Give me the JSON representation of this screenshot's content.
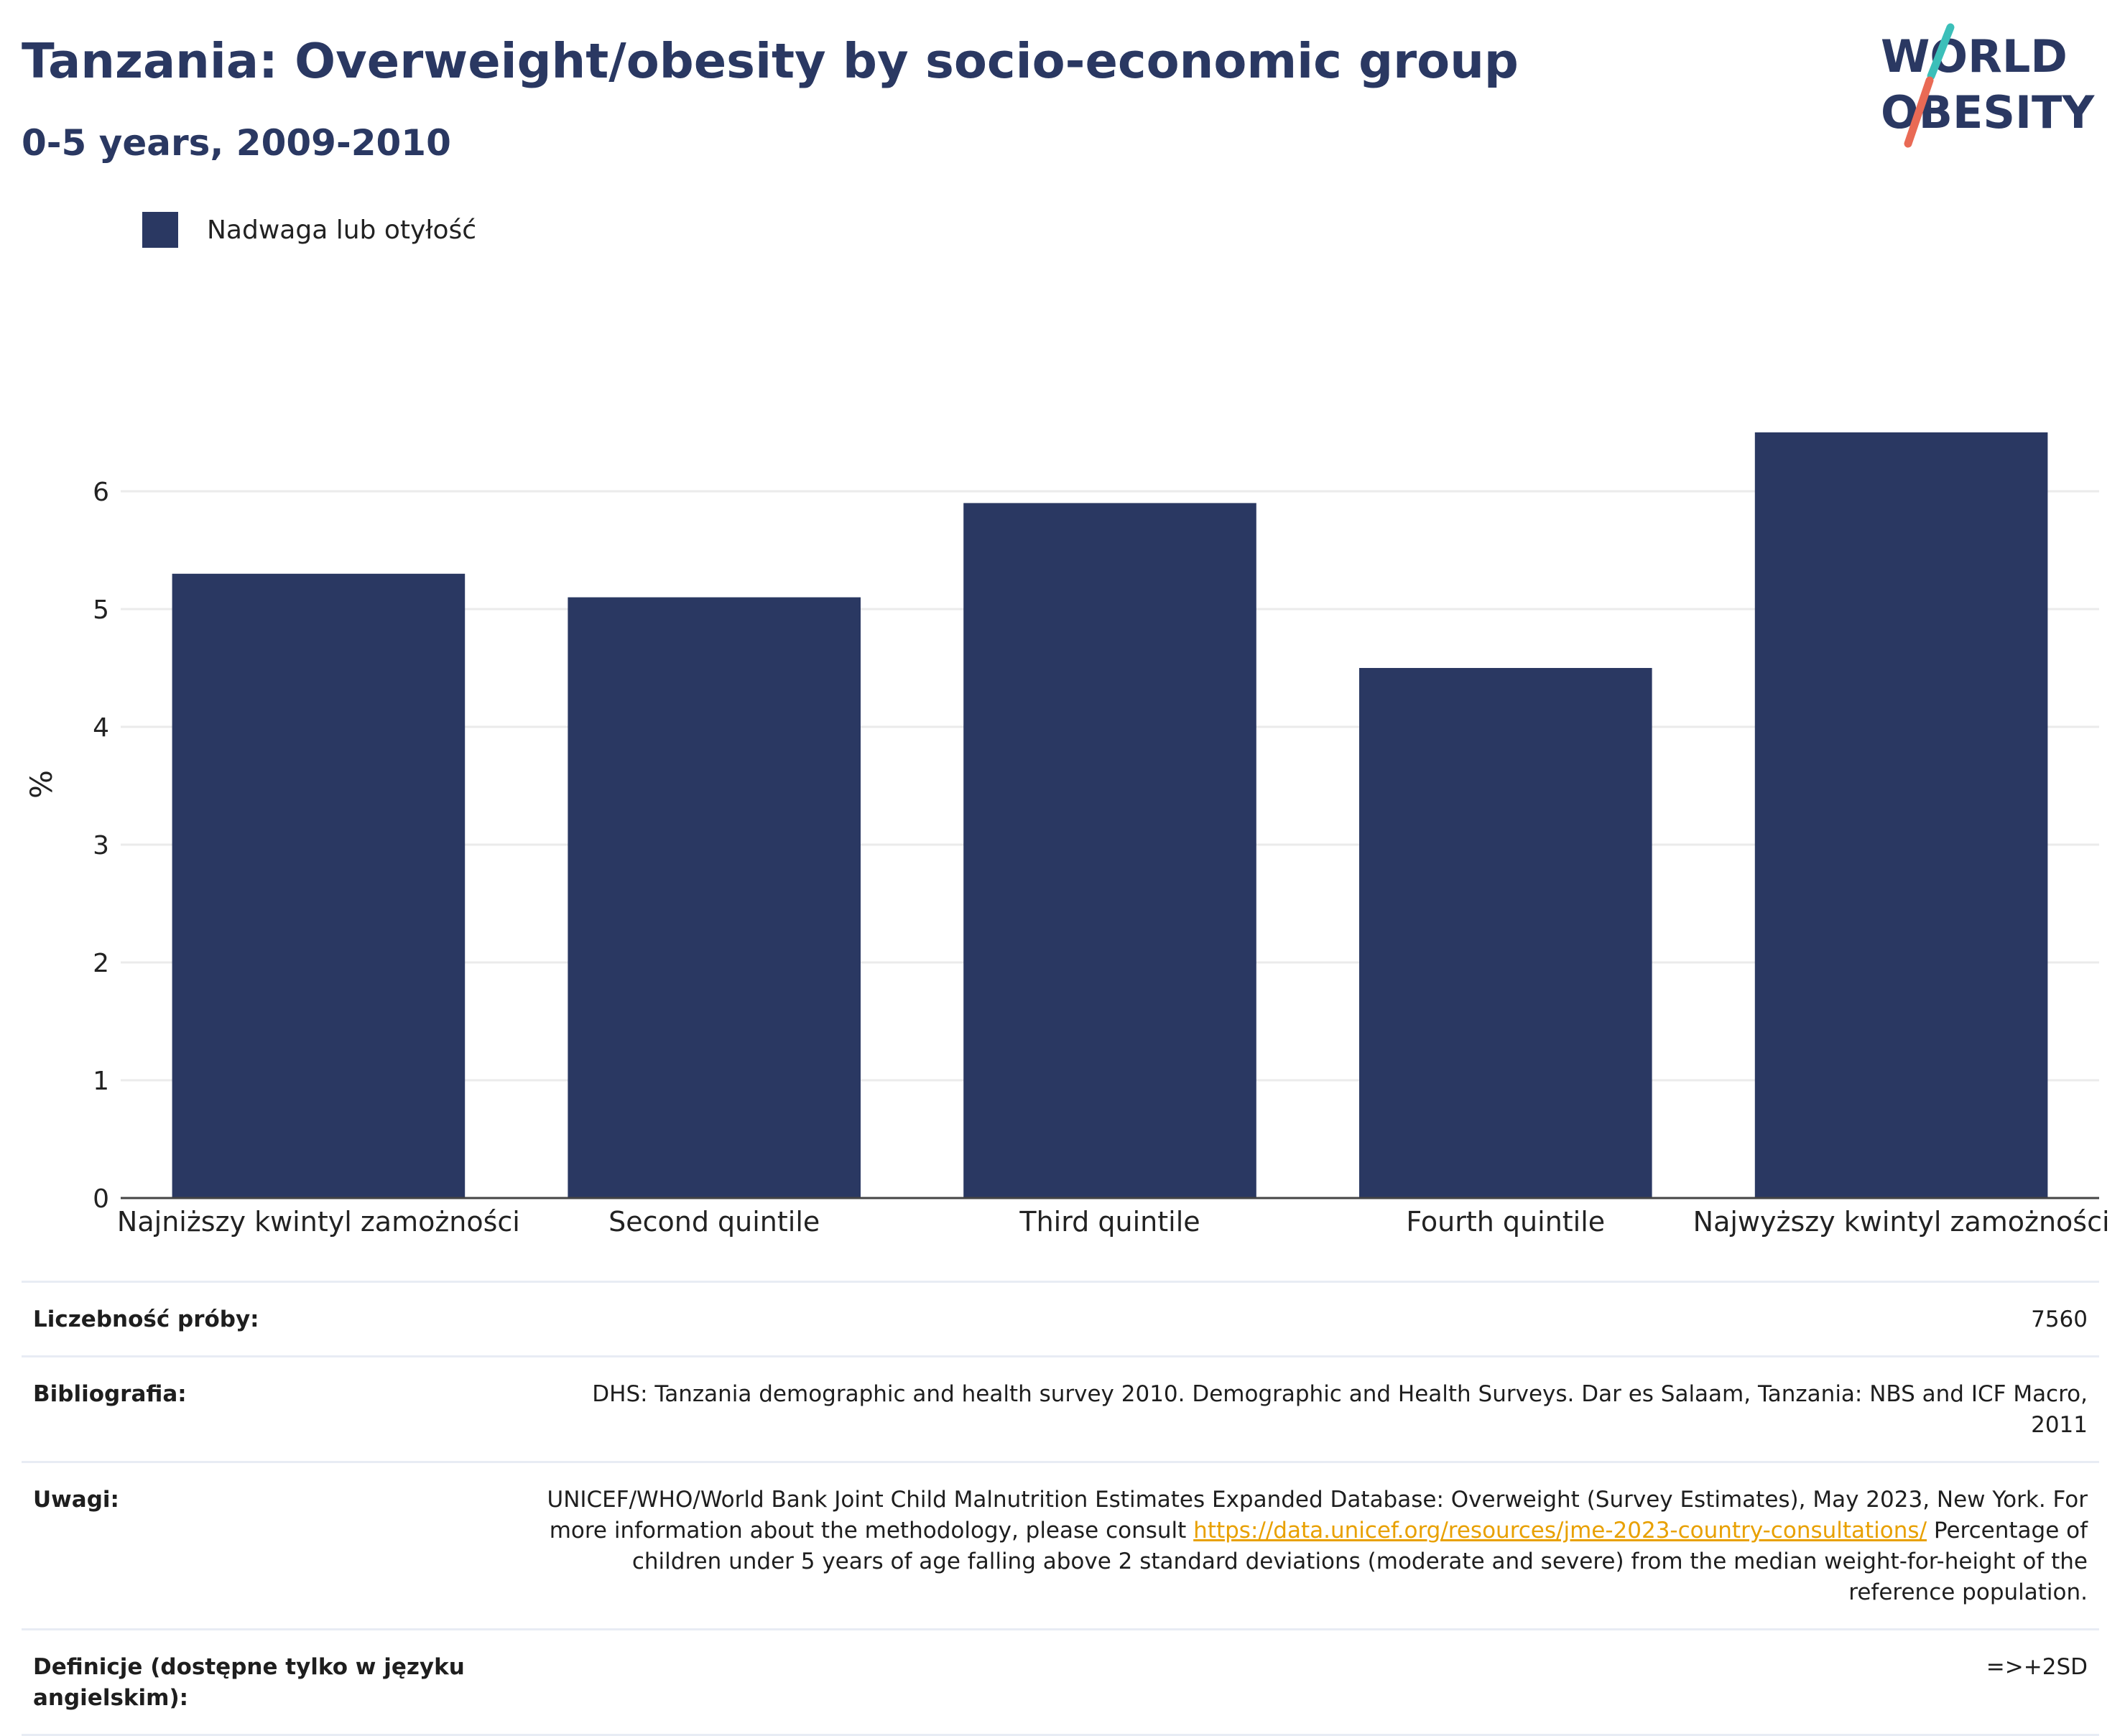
{
  "header": {
    "title": "Tanzania: Overweight/obesity by socio-economic group",
    "subtitle": "0-5 years, 2009-2010"
  },
  "logo": {
    "line1": "WORLD",
    "line2": "OBESITY",
    "accent_colors": [
      "#3bbfb9",
      "#e96a55"
    ]
  },
  "legend": {
    "label": "Nadwaga lub otyłość",
    "color": "#2a3862"
  },
  "chart_data": {
    "type": "bar",
    "categories": [
      "Najniższy kwintyl zamożności",
      "Second quintile",
      "Third quintile",
      "Fourth quintile",
      "Najwyższy kwintyl zamożności"
    ],
    "series": [
      {
        "name": "Nadwaga lub otyłość",
        "values": [
          5.3,
          5.1,
          5.9,
          4.5,
          6.5
        ],
        "color": "#2a3862"
      }
    ],
    "title": "Tanzania: Overweight/obesity by socio-economic group",
    "subtitle": "0-5 years, 2009-2010",
    "xlabel": "",
    "ylabel": "%",
    "ylim": [
      0,
      7
    ],
    "yticks": [
      0,
      1,
      2,
      3,
      4,
      5,
      6
    ],
    "grid": true,
    "legend_position": "top-left"
  },
  "info_table": {
    "rows": [
      {
        "label": "Liczebność próby:",
        "value": "7560"
      },
      {
        "label": "Bibliografia:",
        "value": "DHS: Tanzania demographic and health survey 2010. Demographic and Health Surveys. Dar es Salaam, Tanzania: NBS and ICF Macro, 2011"
      },
      {
        "label": "Uwagi:",
        "value_before": "UNICEF/WHO/World Bank Joint Child Malnutrition Estimates Expanded Database: Overweight (Survey Estimates), May 2023, New York. For more information about the methodology, please consult ",
        "link": "https://data.unicef.org/resources/jme-2023-country-consultations/",
        "value_after": " Percentage of children under 5 years of age falling above 2 standard deviations (moderate and severe) from the median weight-for-height of the reference population."
      },
      {
        "label": "Definicje (dostępne tylko w języku angielskim):",
        "value": "=>+2SD"
      }
    ]
  }
}
